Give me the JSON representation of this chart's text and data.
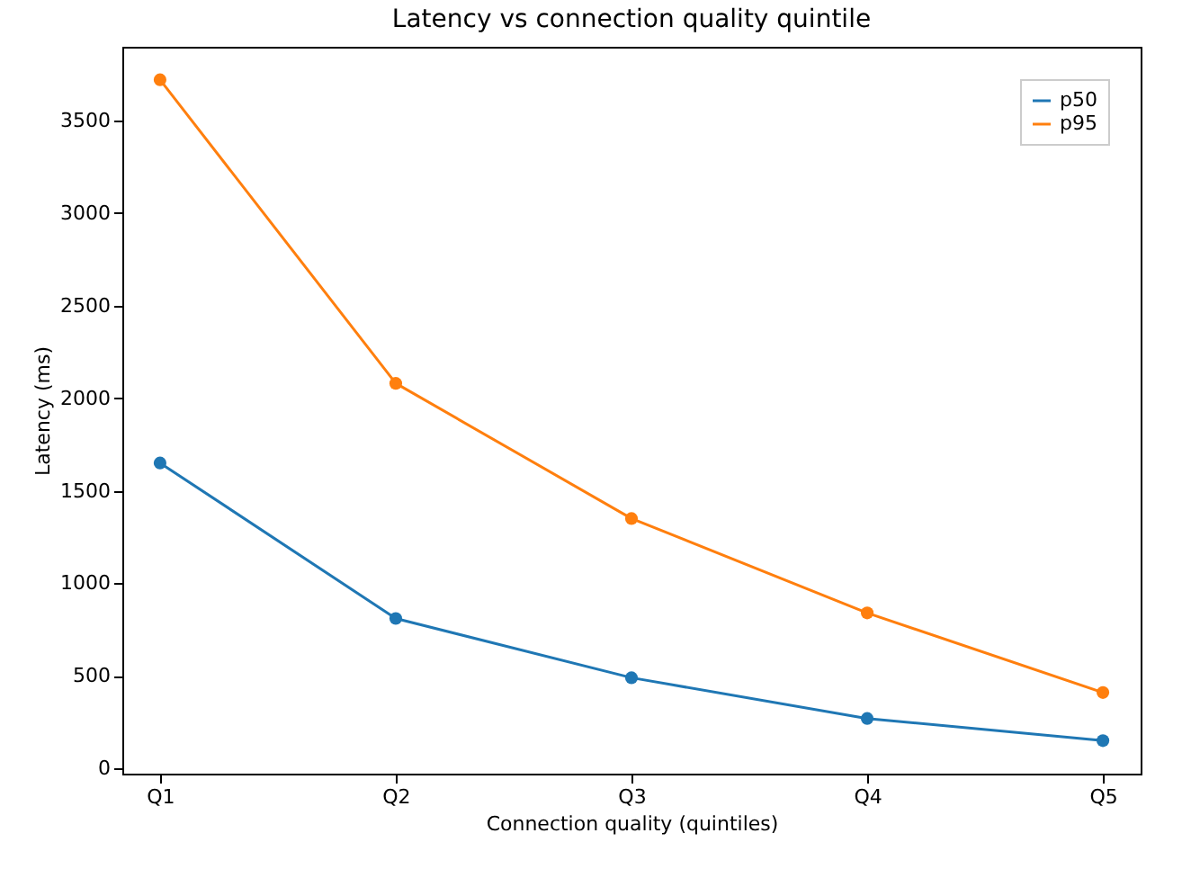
{
  "chart_data": {
    "type": "line",
    "title": "Latency vs connection quality quintile",
    "xlabel": "Connection quality (quintiles)",
    "ylabel": "Latency (ms)",
    "categories": [
      "Q1",
      "Q2",
      "Q3",
      "Q4",
      "Q5"
    ],
    "series": [
      {
        "name": "p50",
        "color": "#1f77b4",
        "values": [
          1650,
          810,
          490,
          270,
          150
        ]
      },
      {
        "name": "p95",
        "color": "#ff7f0e",
        "values": [
          3720,
          2080,
          1350,
          840,
          410
        ]
      }
    ],
    "ylim": [
      -28,
      3898
    ],
    "yticks": [
      0,
      500,
      1000,
      1500,
      2000,
      2500,
      3000,
      3500
    ],
    "grid": false,
    "legend": "top right",
    "marker": "circle",
    "line_style": "solid"
  }
}
